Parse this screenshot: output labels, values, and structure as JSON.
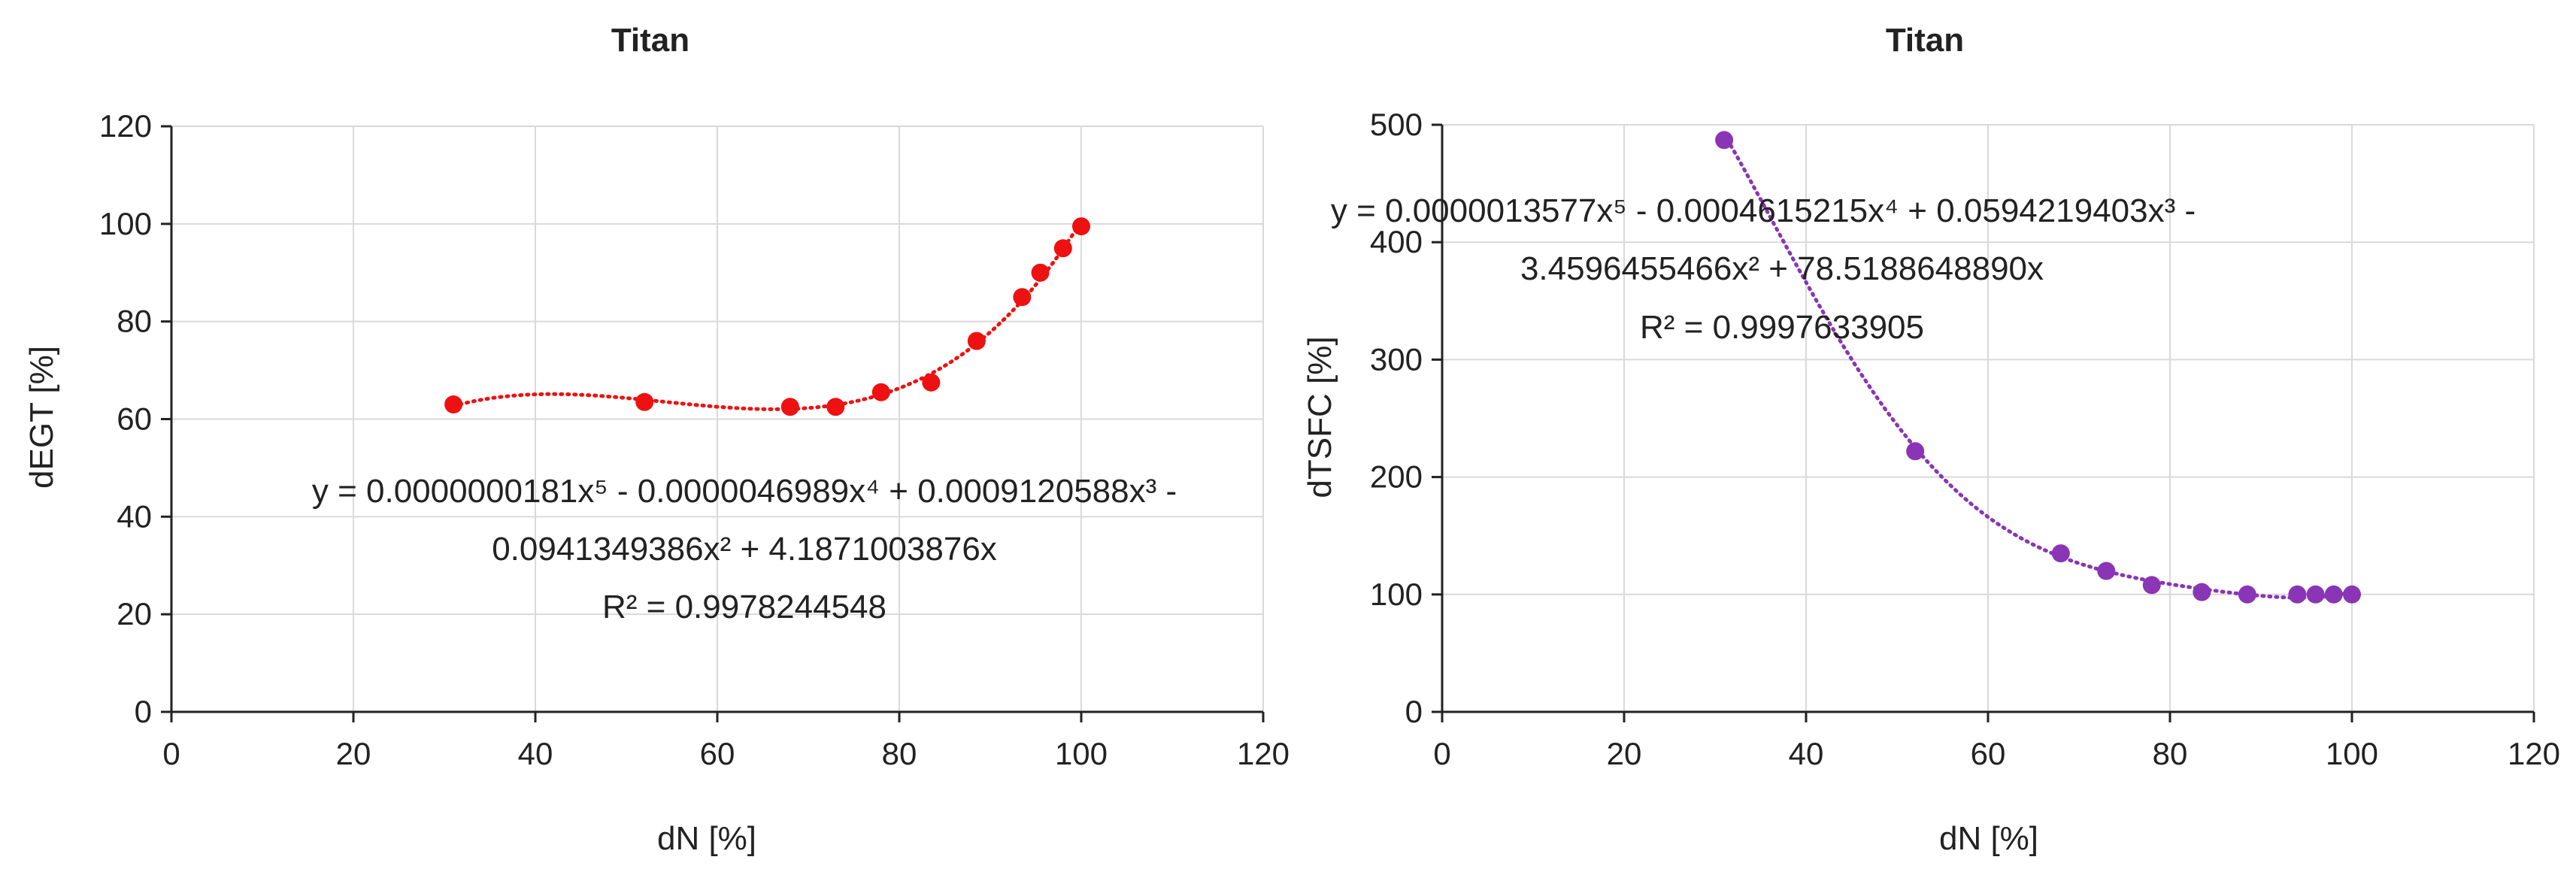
{
  "chart_data": [
    {
      "type": "scatter",
      "title": "Titan",
      "xlabel": "dN [%]",
      "ylabel": "dEGT [%]",
      "xlim": [
        0,
        120
      ],
      "ylim": [
        0,
        120
      ],
      "xticks": [
        0,
        20,
        40,
        60,
        80,
        100,
        120
      ],
      "yticks": [
        0,
        20,
        40,
        60,
        80,
        100,
        120
      ],
      "grid": "vertical and horizontal",
      "legend": "none",
      "color": "#ee1111",
      "series": [
        {
          "x": [
            31,
            52,
            68,
            73,
            78,
            83.5,
            88.5,
            93.5,
            95.5,
            98,
            100
          ],
          "y": [
            63,
            63.5,
            62.5,
            62.5,
            65.5,
            67.5,
            76,
            85,
            90,
            95,
            99.5
          ]
        }
      ],
      "trendline": {
        "kind": "polynomial order 5",
        "style": "dotted",
        "coefficients": [
          1.81e-08,
          -4.6989e-06,
          0.0009120588,
          -0.0941349386,
          4.1871003876,
          0
        ],
        "equation_lines": [
          "y = 0.0000000181x⁵  - 0.0000046989x⁴  + 0.0009120588x³  -",
          "0.0941349386x²  + 4.1871003876x",
          "R² = 0.9978244548"
        ]
      }
    },
    {
      "type": "scatter",
      "title": "Titan",
      "xlabel": "dN [%]",
      "ylabel": "dTSFC [%]",
      "xlim": [
        0,
        120
      ],
      "ylim": [
        0,
        500
      ],
      "xticks": [
        0,
        20,
        40,
        60,
        80,
        100,
        120
      ],
      "yticks": [
        0,
        100,
        200,
        300,
        400,
        500
      ],
      "grid": "vertical and horizontal",
      "legend": "none",
      "color": "#8a35b5",
      "series": [
        {
          "x": [
            31,
            52,
            68,
            73,
            78,
            83.5,
            88.5,
            94,
            96,
            98,
            100
          ],
          "y": [
            487,
            222,
            135,
            120,
            108,
            102,
            100,
            100,
            100,
            100,
            100
          ]
        }
      ],
      "trendline": {
        "kind": "polynomial order 5",
        "style": "dotted",
        "coefficients": [
          1.3577e-06,
          -0.0004615215,
          0.0594219403,
          -3.4596455466,
          78.518864889,
          0
        ],
        "equation_lines": [
          "y = 0.0000013577x⁵  - 0.0004615215x⁴  + 0.0594219403x³  -",
          "3.4596455466x²  + 78.5188648890x",
          "R² = 0.9997633905"
        ]
      }
    }
  ]
}
